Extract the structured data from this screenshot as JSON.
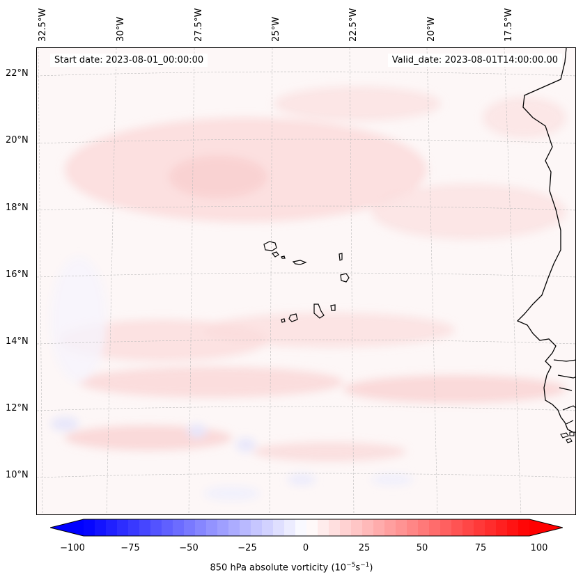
{
  "map": {
    "start_label": "Start date: 2023-08-01_00:00:00",
    "valid_label": "Valid_date: 2023-08-01T14:00:00.00",
    "background_color": "#fdf7f7",
    "land_outline_color": "#000000",
    "gridline_color": "#bbbbbb",
    "longitude_labels": [
      "32.5°W",
      "30°W",
      "27.5°W",
      "25°W",
      "22.5°W",
      "20°W",
      "17.5°W"
    ],
    "latitude_labels": [
      "22°N",
      "20°N",
      "18°N",
      "16°N",
      "14°N",
      "12°N",
      "10°N"
    ],
    "features": [
      "Cape Verde islands",
      "West African coastline"
    ]
  },
  "colorbar": {
    "label_text": "850 hPa absolute vorticity (10",
    "label_exp1": "−5",
    "label_mid": "s",
    "label_exp2": "−1",
    "label_close": ")",
    "ticks": [
      "−100",
      "−75",
      "−50",
      "−25",
      "0",
      "25",
      "50",
      "75",
      "100"
    ],
    "range": [
      -100,
      100
    ],
    "colormap": "bwr",
    "color_low": "#0000ff",
    "color_mid": "#ffffff",
    "color_high": "#ff0000"
  }
}
